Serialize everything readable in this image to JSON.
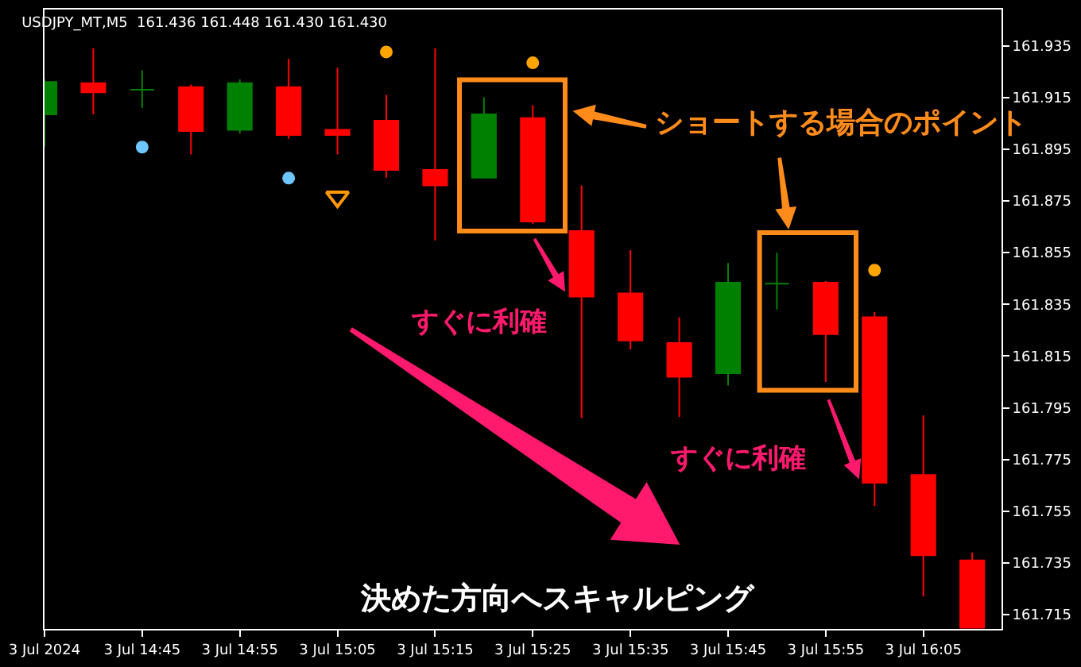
{
  "chart_data": {
    "type": "candlestick",
    "title": "USDJPY_MT,M5  161.436 161.448 161.430 161.430",
    "x": [
      "2024-07-03T14:35",
      "2024-07-03T14:40",
      "2024-07-03T14:45",
      "2024-07-03T14:50",
      "2024-07-03T14:55",
      "2024-07-03T15:00",
      "2024-07-03T15:05",
      "2024-07-03T15:10",
      "2024-07-03T15:15",
      "2024-07-03T15:20",
      "2024-07-03T15:25",
      "2024-07-03T15:30",
      "2024-07-03T15:35",
      "2024-07-03T15:40",
      "2024-07-03T15:45",
      "2024-07-03T15:50",
      "2024-07-03T15:55",
      "2024-07-03T16:00",
      "2024-07-03T16:05",
      "2024-07-03T16:10"
    ],
    "ohlc": [
      [
        161.9085,
        161.922,
        161.896,
        161.921
      ],
      [
        161.9205,
        161.934,
        161.9085,
        161.917
      ],
      [
        161.918,
        161.9255,
        161.911,
        161.918
      ],
      [
        161.919,
        161.92,
        161.893,
        161.902
      ],
      [
        161.9025,
        161.922,
        161.901,
        161.9205
      ],
      [
        161.919,
        161.93,
        161.899,
        161.9005
      ],
      [
        161.9025,
        161.9265,
        161.893,
        161.9005
      ],
      [
        161.906,
        161.916,
        161.884,
        161.887
      ],
      [
        161.887,
        161.934,
        161.8597,
        161.881
      ],
      [
        161.884,
        161.915,
        161.884,
        161.9085
      ],
      [
        161.907,
        161.912,
        161.866,
        161.867
      ],
      [
        161.8633,
        161.881,
        161.791,
        161.838
      ],
      [
        161.8392,
        161.856,
        161.8175,
        161.821
      ],
      [
        161.82,
        161.83,
        161.7915,
        161.807
      ],
      [
        161.8084,
        161.851,
        161.8036,
        161.8434
      ],
      [
        161.843,
        161.855,
        161.833,
        161.843
      ],
      [
        161.8434,
        161.844,
        161.805,
        161.8235
      ],
      [
        161.83,
        161.832,
        161.757,
        161.766
      ],
      [
        161.769,
        161.792,
        161.722,
        161.738
      ],
      [
        161.736,
        161.739,
        161.71,
        161.71
      ]
    ],
    "colors": [
      "#008000",
      "#ff0000",
      "#008000",
      "#ff0000",
      "#008000",
      "#ff0000",
      "#ff0000",
      "#ff0000",
      "#ff0000",
      "#008000",
      "#ff0000",
      "#ff0000",
      "#ff0000",
      "#ff0000",
      "#008000",
      "#008000",
      "#ff0000",
      "#ff0000",
      "#ff0000",
      "#ff0000"
    ],
    "series": [
      {
        "type": "scatter",
        "color": "#ffa500",
        "marker": "circle",
        "x": [
          "2024-07-03T15:10",
          "2024-07-03T15:25",
          "2024-07-03T16:00"
        ],
        "values": [
          161.9326,
          161.9284,
          161.8482
        ]
      },
      {
        "type": "scatter",
        "color": "#6ec6ff",
        "marker": "circle",
        "x": [
          "2024-07-03T14:45",
          "2024-07-03T15:00"
        ],
        "values": [
          161.8958,
          161.8838
        ]
      },
      {
        "type": "scatter",
        "color": "#ff9900",
        "marker": "triangle",
        "x": [
          "2024-07-03T15:05"
        ],
        "values": [
          161.8765
        ]
      }
    ],
    "annotations": [
      "ショートする場合のポイント",
      {
        "text": "すぐに利確",
        "x": "2024-07-03T15:30",
        "y": 161.838
      },
      {
        "text": "すぐに利確",
        "x": "2024-07-03T16:00",
        "y": 161.766
      },
      "決めた方向へスキャルピング"
    ],
    "xlim": [
      "2024-07-03T14:35",
      "2024-07-03T16:13"
    ],
    "xticks": [
      {
        "value": "2024-07-03T14:35",
        "label": "3 Jul 2024"
      },
      {
        "value": "2024-07-03T14:45",
        "label": "3 Jul 14:45"
      },
      {
        "value": "2024-07-03T14:55",
        "label": "3 Jul 14:55"
      },
      {
        "value": "2024-07-03T15:05",
        "label": "3 Jul 15:05"
      },
      {
        "value": "2024-07-03T15:15",
        "label": "3 Jul 15:15"
      },
      {
        "value": "2024-07-03T15:25",
        "label": "3 Jul 15:25"
      },
      {
        "value": "2024-07-03T15:35",
        "label": "3 Jul 15:35"
      },
      {
        "value": "2024-07-03T15:45",
        "label": "3 Jul 15:45"
      },
      {
        "value": "2024-07-03T15:55",
        "label": "3 Jul 15:55"
      },
      {
        "value": "2024-07-03T16:05",
        "label": "3 Jul 16:05"
      }
    ],
    "ylim": [
      161.7095,
      161.949
    ],
    "yticks": [
      161.935,
      161.915,
      161.895,
      161.875,
      161.855,
      161.835,
      161.815,
      161.795,
      161.775,
      161.755,
      161.735,
      161.715
    ],
    "grid": false
  }
}
